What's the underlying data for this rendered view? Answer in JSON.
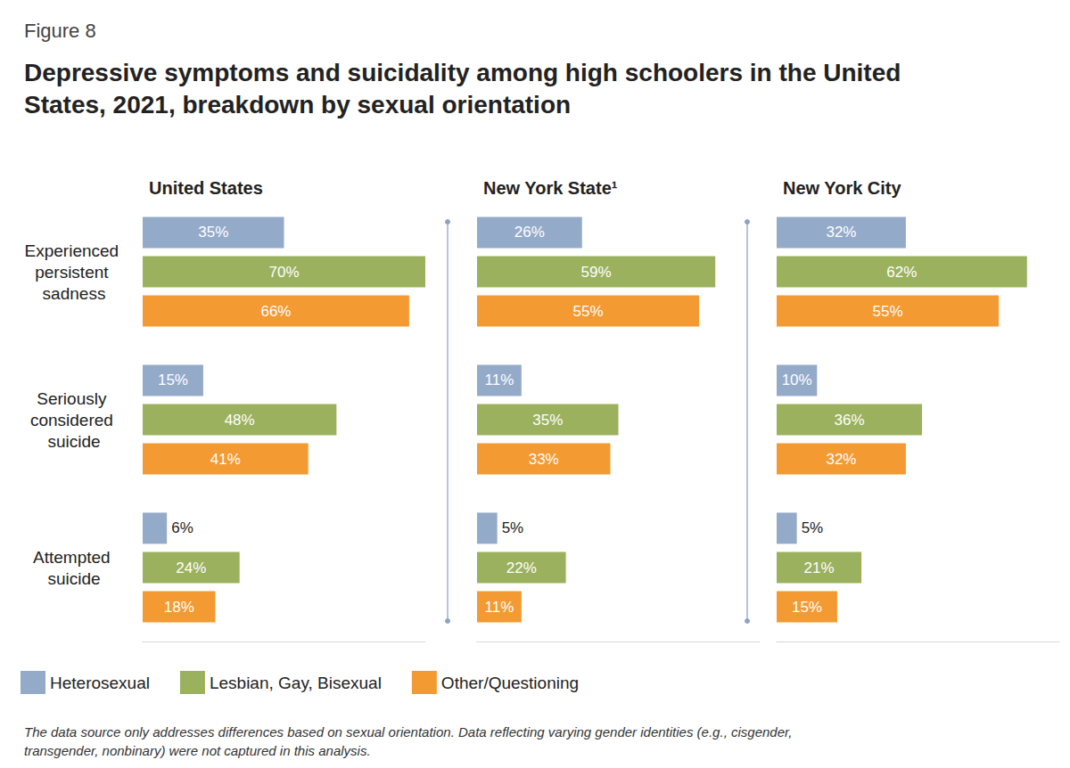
{
  "figure_label": "Figure 8",
  "title": "Depressive symptoms and suicidality among high schoolers in the United States, 2021, breakdown by sexual orientation",
  "note": "The data source only addresses differences based on sexual orientation. Data reflecting varying gender identities (e.g., cisgender, transgender, nonbinary) were not captured in this analysis.",
  "chart_data": [
    {
      "type": "bar",
      "title": "United States",
      "orientation": "horizontal",
      "data_labels": true,
      "tick_labels": "y",
      "grid": false,
      "legend": "bottom left",
      "categories": [
        "Experienced persistent sadness",
        "Seriously considered suicide",
        "Attempted suicide"
      ],
      "xlim": [
        0,
        70
      ],
      "series": [
        {
          "name": "Heterosexual",
          "color": "#94aac9",
          "values": [
            35,
            15,
            6
          ],
          "value_labels": [
            "35%",
            "15%",
            "6%"
          ]
        },
        {
          "name": "Lesbian, Gay, Bisexual",
          "color": "#9bb15e",
          "values": [
            70,
            48,
            24
          ],
          "value_labels": [
            "70%",
            "48%",
            "24%"
          ]
        },
        {
          "name": "Other/Questioning",
          "color": "#f39a33",
          "values": [
            66,
            41,
            18
          ],
          "value_labels": [
            "66%",
            "41%",
            "18%"
          ]
        }
      ]
    },
    {
      "type": "bar",
      "title": "New York State¹",
      "orientation": "horizontal",
      "data_labels": true,
      "tick_labels": false,
      "grid": false,
      "categories": [
        "Experienced persistent sadness",
        "Seriously considered suicide",
        "Attempted suicide"
      ],
      "xlim": [
        0,
        70
      ],
      "series": [
        {
          "name": "Heterosexual",
          "color": "#94aac9",
          "values": [
            26,
            11,
            5
          ],
          "value_labels": [
            "26%",
            "11%",
            "5%"
          ]
        },
        {
          "name": "Lesbian, Gay, Bisexual",
          "color": "#9bb15e",
          "values": [
            59,
            35,
            22
          ],
          "value_labels": [
            "59%",
            "35%",
            "22%"
          ]
        },
        {
          "name": "Other/Questioning",
          "color": "#f39a33",
          "values": [
            55,
            33,
            11
          ],
          "value_labels": [
            "55%",
            "33%",
            "11%"
          ]
        }
      ]
    },
    {
      "type": "bar",
      "title": "New York City",
      "orientation": "horizontal",
      "data_labels": true,
      "tick_labels": false,
      "grid": false,
      "categories": [
        "Experienced persistent sadness",
        "Seriously considered suicide",
        "Attempted suicide"
      ],
      "xlim": [
        0,
        70
      ],
      "series": [
        {
          "name": "Heterosexual",
          "color": "#94aac9",
          "values": [
            32,
            10,
            5
          ],
          "value_labels": [
            "32%",
            "10%",
            "5%"
          ]
        },
        {
          "name": "Lesbian, Gay, Bisexual",
          "color": "#9bb15e",
          "values": [
            62,
            36,
            21
          ],
          "value_labels": [
            "62%",
            "36%",
            "21%"
          ]
        },
        {
          "name": "Other/Questioning",
          "color": "#f39a33",
          "values": [
            55,
            32,
            15
          ],
          "value_labels": [
            "55%",
            "32%",
            "15%"
          ]
        }
      ]
    }
  ]
}
